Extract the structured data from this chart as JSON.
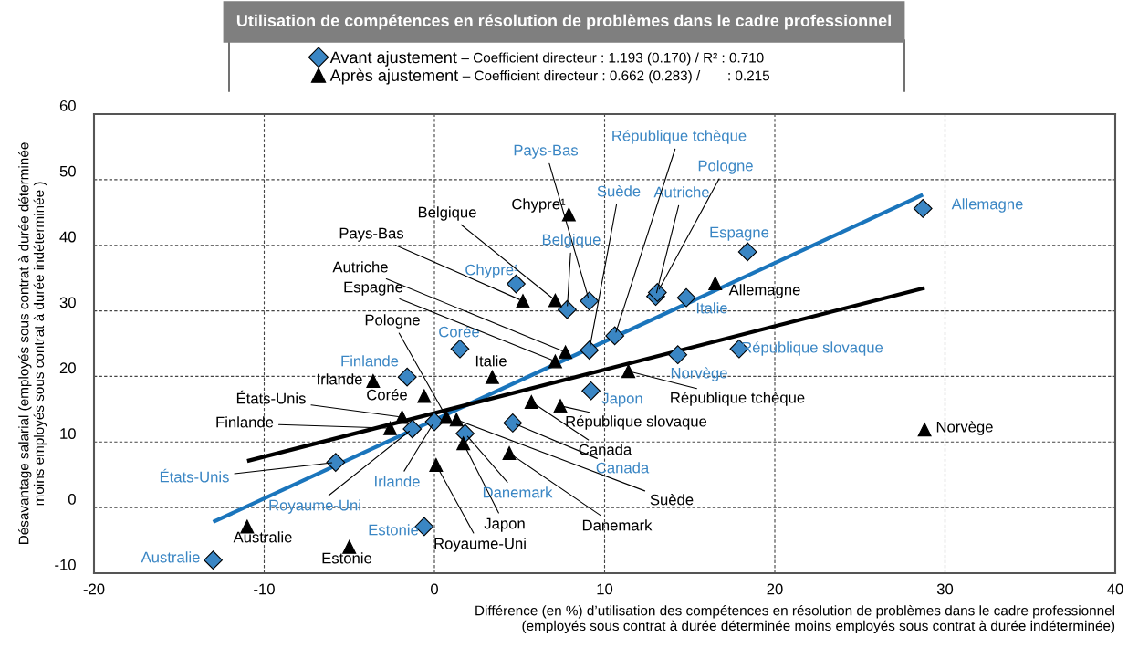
{
  "chart_data": {
    "type": "scatter",
    "title": "Utilisation de compétences en résolution de problèmes dans le cadre professionnel",
    "xlabel": "Différence (en %) d’utilisation des compétences en résolution de problèmes dans le cadre professionnel\n(employés sous contrat à durée déterminée moins employés sous contrat à durée indéterminée)",
    "ylabel": "Désavantage salarial (employés sous contrat à durée déterminée\nmoins employés sous contrat à durée indéterminée )",
    "xlim": [
      -20,
      40
    ],
    "xticks": [
      -20,
      -10,
      0,
      10,
      20,
      30,
      40
    ],
    "ylim": [
      -10,
      60
    ],
    "yticks": [
      -10,
      0,
      10,
      20,
      30,
      40,
      50,
      60
    ],
    "grid": true,
    "legend": "top",
    "series": [
      {
        "name": "Avant ajustement",
        "marker": "diamond",
        "color": "#3a86c4",
        "x": [
          28.7,
          18.4,
          14.8,
          13.0,
          13.1,
          9.1,
          7.8,
          4.8,
          10.6,
          9.1,
          1.5,
          14.3,
          17.9,
          9.2,
          4.6,
          1.8,
          -1.6,
          -1.3,
          0.0,
          -5.8,
          -0.6,
          -13.0
        ],
        "values": [
          45.6,
          39.0,
          32.0,
          32.2,
          32.8,
          31.5,
          30.2,
          34.1,
          26.2,
          24.0,
          24.2,
          23.3,
          24.2,
          17.8,
          12.9,
          11.3,
          19.9,
          12.0,
          13.1,
          6.9,
          -2.9,
          -8.0
        ]
      },
      {
        "name": "Après ajustement",
        "marker": "triangle",
        "color": "#000000",
        "x": [
          7.9,
          16.5,
          7.1,
          5.2,
          7.7,
          7.1,
          3.4,
          11.4,
          7.4,
          5.7,
          4.4,
          1.3,
          1.7,
          0.1,
          0.7,
          -1.9,
          -2.6,
          -3.6,
          -0.6,
          -11.0,
          -5.0,
          28.8
        ],
        "values": [
          44.7,
          34.2,
          31.6,
          31.5,
          23.7,
          22.3,
          19.9,
          20.8,
          15.5,
          16.1,
          8.3,
          13.4,
          9.8,
          6.5,
          13.8,
          13.8,
          12.1,
          19.3,
          17.0,
          -2.9,
          -6.0,
          11.9
        ]
      },
      {
        "type": "line",
        "color": "#1a75bc",
        "line_style": "solid",
        "x": [
          -13.0,
          28.7
        ],
        "values": [
          -2.2,
          47.7
        ]
      },
      {
        "type": "line",
        "color": "#000000",
        "line_style": "solid",
        "x": [
          -11.0,
          28.8
        ],
        "values": [
          7.1,
          33.5
        ]
      }
    ],
    "annotations": [
      "– Coefficient directeur : 1.193 (0.170) / R² : 0.710",
      "– Coefficient directeur : 0.662 (0.283) /       : 0.215",
      {
        "text": "Allemagne",
        "x": 28.7,
        "y": 45.6
      },
      {
        "text": "Espagne",
        "x": 18.4,
        "y": 39.0
      },
      {
        "text": "Italie",
        "x": 14.8,
        "y": 32.0
      },
      {
        "text": "Autriche",
        "x": 13.0,
        "y": 32.2
      },
      {
        "text": "Pologne",
        "x": 13.1,
        "y": 32.8
      },
      {
        "text": "Pays-Bas",
        "x": 9.1,
        "y": 31.5
      },
      {
        "text": "Belgique",
        "x": 7.8,
        "y": 30.2
      },
      {
        "text": "Chypre¹",
        "x": 4.8,
        "y": 34.1
      },
      {
        "text": "République tchèque",
        "x": 10.6,
        "y": 26.2
      },
      {
        "text": "Suède",
        "x": 9.1,
        "y": 24.0
      },
      {
        "text": "Corée",
        "x": 1.5,
        "y": 24.2
      },
      {
        "text": "Norvège",
        "x": 14.3,
        "y": 23.3
      },
      {
        "text": "République slovaque",
        "x": 17.9,
        "y": 24.2
      },
      {
        "text": "Japon",
        "x": 9.2,
        "y": 17.8
      },
      {
        "text": "Canada",
        "x": 4.6,
        "y": 12.9
      },
      {
        "text": "Danemark",
        "x": 1.8,
        "y": 11.3
      },
      {
        "text": "Finlande",
        "x": -1.6,
        "y": 19.9
      },
      {
        "text": "Royaume-Uni",
        "x": -1.3,
        "y": 12.0
      },
      {
        "text": "Irlande",
        "x": 0.0,
        "y": 13.1
      },
      {
        "text": "États-Unis",
        "x": -5.8,
        "y": 6.9
      },
      {
        "text": "Estonie",
        "x": -0.6,
        "y": -2.9
      },
      {
        "text": "Australie",
        "x": -13.0,
        "y": -8.0
      },
      {
        "text": "Chypre¹",
        "x": 7.9,
        "y": 44.7
      },
      {
        "text": "Allemagne",
        "x": 16.5,
        "y": 34.2
      },
      {
        "text": "Belgique",
        "x": 7.1,
        "y": 31.6
      },
      {
        "text": "Pays-Bas",
        "x": 5.2,
        "y": 31.5
      },
      {
        "text": "Autriche",
        "x": 7.7,
        "y": 23.7
      },
      {
        "text": "Espagne",
        "x": 7.1,
        "y": 22.3
      },
      {
        "text": "Italie",
        "x": 3.4,
        "y": 19.9
      },
      {
        "text": "République tchèque",
        "x": 11.4,
        "y": 20.8
      },
      {
        "text": "République slovaque",
        "x": 7.4,
        "y": 15.5
      },
      {
        "text": "Canada",
        "x": 5.7,
        "y": 16.1
      },
      {
        "text": "Danemark",
        "x": 4.4,
        "y": 8.3
      },
      {
        "text": "Suède",
        "x": 1.3,
        "y": 13.4
      },
      {
        "text": "Japon",
        "x": 1.7,
        "y": 9.8
      },
      {
        "text": "Royaume-Uni",
        "x": 0.1,
        "y": 6.5
      },
      {
        "text": "Pologne",
        "x": 0.7,
        "y": 13.8
      },
      {
        "text": "États-Unis",
        "x": -1.9,
        "y": 13.8
      },
      {
        "text": "Finlande",
        "x": -2.6,
        "y": 12.1
      },
      {
        "text": "Irlande",
        "x": -3.6,
        "y": 19.3
      },
      {
        "text": "Corée",
        "x": -0.6,
        "y": 17.0
      },
      {
        "text": "Australie",
        "x": -11.0,
        "y": -2.9
      },
      {
        "text": "Estonie",
        "x": -5.0,
        "y": -6.0
      },
      {
        "text": "Norvège",
        "x": 28.8,
        "y": 11.9
      }
    ]
  }
}
